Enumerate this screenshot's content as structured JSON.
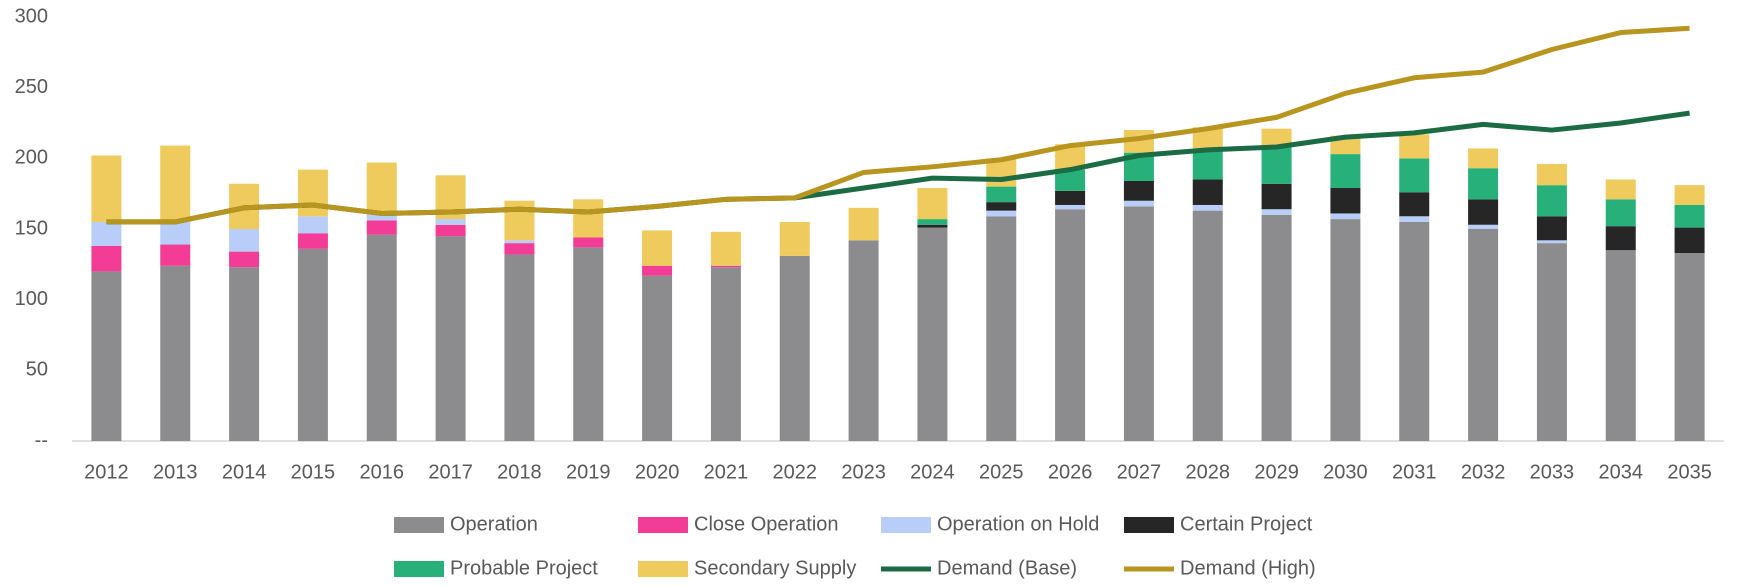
{
  "chart_data": {
    "type": "bar",
    "categories": [
      "2012",
      "2013",
      "2014",
      "2015",
      "2016",
      "2017",
      "2018",
      "2019",
      "2020",
      "2021",
      "2022",
      "2023",
      "2024",
      "2025",
      "2026",
      "2027",
      "2028",
      "2029",
      "2030",
      "2031",
      "2032",
      "2033",
      "2034",
      "2035"
    ],
    "stacked": true,
    "series": [
      {
        "name": "Operation",
        "color": "#8c8c8f",
        "values": [
          120,
          124,
          123,
          136,
          146,
          145,
          132,
          137,
          117,
          123,
          131,
          142,
          151,
          159,
          164,
          166,
          163,
          160,
          157,
          155,
          150,
          140,
          135,
          133
        ]
      },
      {
        "name": "Close Operation",
        "color": "#f23c96",
        "values": [
          18,
          15,
          11,
          11,
          10,
          8,
          8,
          7,
          7,
          1,
          0,
          0,
          0,
          0,
          0,
          0,
          0,
          0,
          0,
          0,
          0,
          0,
          0,
          0
        ]
      },
      {
        "name": "Operation on Hold",
        "color": "#b8cdf7",
        "values": [
          17,
          16,
          16,
          12,
          4,
          4,
          2,
          0,
          0,
          0,
          0,
          0,
          0,
          4,
          3,
          4,
          4,
          4,
          4,
          4,
          3,
          2,
          0,
          0
        ]
      },
      {
        "name": "Certain Project",
        "color": "#262626",
        "values": [
          0,
          0,
          0,
          0,
          0,
          0,
          0,
          0,
          0,
          0,
          0,
          0,
          2,
          6,
          10,
          14,
          18,
          18,
          18,
          17,
          18,
          17,
          17,
          18
        ]
      },
      {
        "name": "Probable Project",
        "color": "#28b07a",
        "values": [
          0,
          0,
          0,
          0,
          0,
          0,
          0,
          0,
          0,
          0,
          0,
          0,
          4,
          11,
          15,
          20,
          22,
          26,
          24,
          24,
          22,
          22,
          19,
          16
        ]
      },
      {
        "name": "Secondary Supply",
        "color": "#eecb5c",
        "values": [
          47,
          54,
          32,
          33,
          37,
          31,
          28,
          27,
          25,
          24,
          24,
          23,
          22,
          20,
          18,
          16,
          15,
          13,
          13,
          17,
          14,
          15,
          14,
          14
        ]
      },
      {
        "name": "Demand (Base)",
        "type": "line",
        "color": "#1b6b45",
        "values": [
          155,
          155,
          165,
          167,
          161,
          162,
          164,
          162,
          166,
          171,
          172,
          179,
          186,
          185,
          192,
          202,
          206,
          208,
          215,
          218,
          224,
          220,
          225,
          232
        ]
      },
      {
        "name": "Demand (High)",
        "type": "line",
        "color": "#b8951f",
        "values": [
          155,
          155,
          165,
          167,
          161,
          162,
          164,
          162,
          166,
          171,
          172,
          190,
          194,
          199,
          209,
          214,
          221,
          229,
          246,
          257,
          261,
          277,
          289,
          292
        ]
      }
    ],
    "ylim": [
      0,
      300
    ],
    "yticks": [
      {
        "value": 0,
        "label": "--"
      },
      50,
      100,
      150,
      200,
      250,
      300
    ],
    "grid": false
  }
}
